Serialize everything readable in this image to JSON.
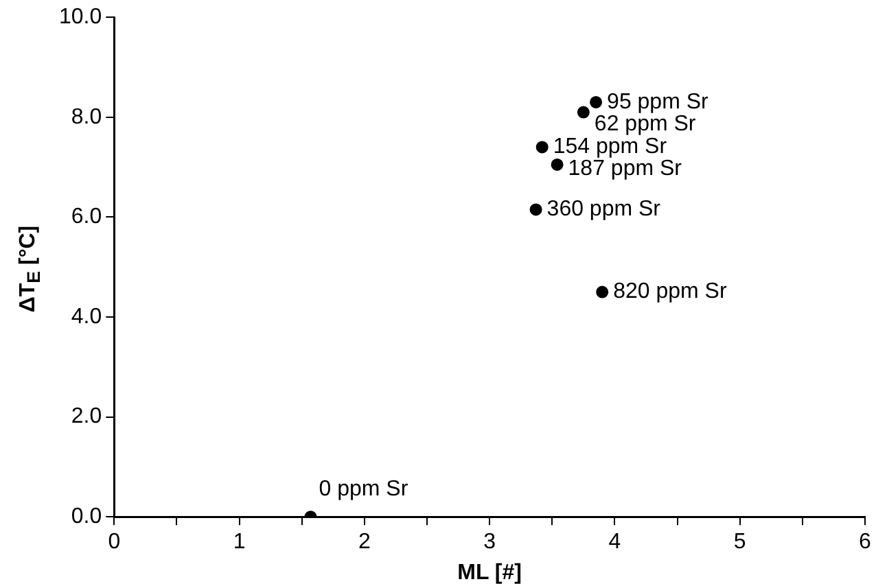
{
  "chart_data": {
    "type": "scatter",
    "xlabel": "ML [#]",
    "ylabel": "ΔT$_{E}$ [°C]",
    "x": [
      1.57,
      3.85,
      3.75,
      3.42,
      3.54,
      3.37,
      3.9
    ],
    "values": [
      0,
      8.3,
      8.1,
      7.4,
      7.05,
      6.15,
      4.5
    ],
    "color": "#000000",
    "marker": "circle",
    "grid": false,
    "legend": false,
    "xlim": [
      0,
      6
    ],
    "xticks": [
      0,
      {
        "value": 0.5,
        "label": null
      },
      1,
      {
        "value": 1.5,
        "label": null
      },
      2,
      {
        "value": 2.5,
        "label": null
      },
      3,
      {
        "value": 3.5,
        "label": null
      },
      4,
      {
        "value": 4.5,
        "label": null
      },
      5,
      {
        "value": 5.5,
        "label": null
      },
      6
    ],
    "ylim": [
      0,
      10
    ],
    "yticks": [
      {
        "value": 0,
        "label": "0.0"
      },
      {
        "value": 2,
        "label": "2.0"
      },
      {
        "value": 4,
        "label": "4.0"
      },
      {
        "value": 6,
        "label": "6.0"
      },
      {
        "value": 8,
        "label": "8.0"
      },
      {
        "value": 10,
        "label": "10.0"
      }
    ],
    "annotations": [
      {
        "text": "0 ppm Sr",
        "x": 1.57,
        "y": 0
      },
      {
        "text": "95 ppm Sr",
        "x": 3.85,
        "y": 8.3
      },
      {
        "text": "62 ppm Sr",
        "x": 3.75,
        "y": 8.1
      },
      {
        "text": "154 ppm Sr",
        "x": 3.42,
        "y": 7.4
      },
      {
        "text": "187 ppm Sr",
        "x": 3.54,
        "y": 7.05
      },
      {
        "text": "360 ppm Sr",
        "x": 3.37,
        "y": 6.15
      },
      {
        "text": "820 ppm Sr",
        "x": 3.9,
        "y": 4.5
      }
    ]
  }
}
